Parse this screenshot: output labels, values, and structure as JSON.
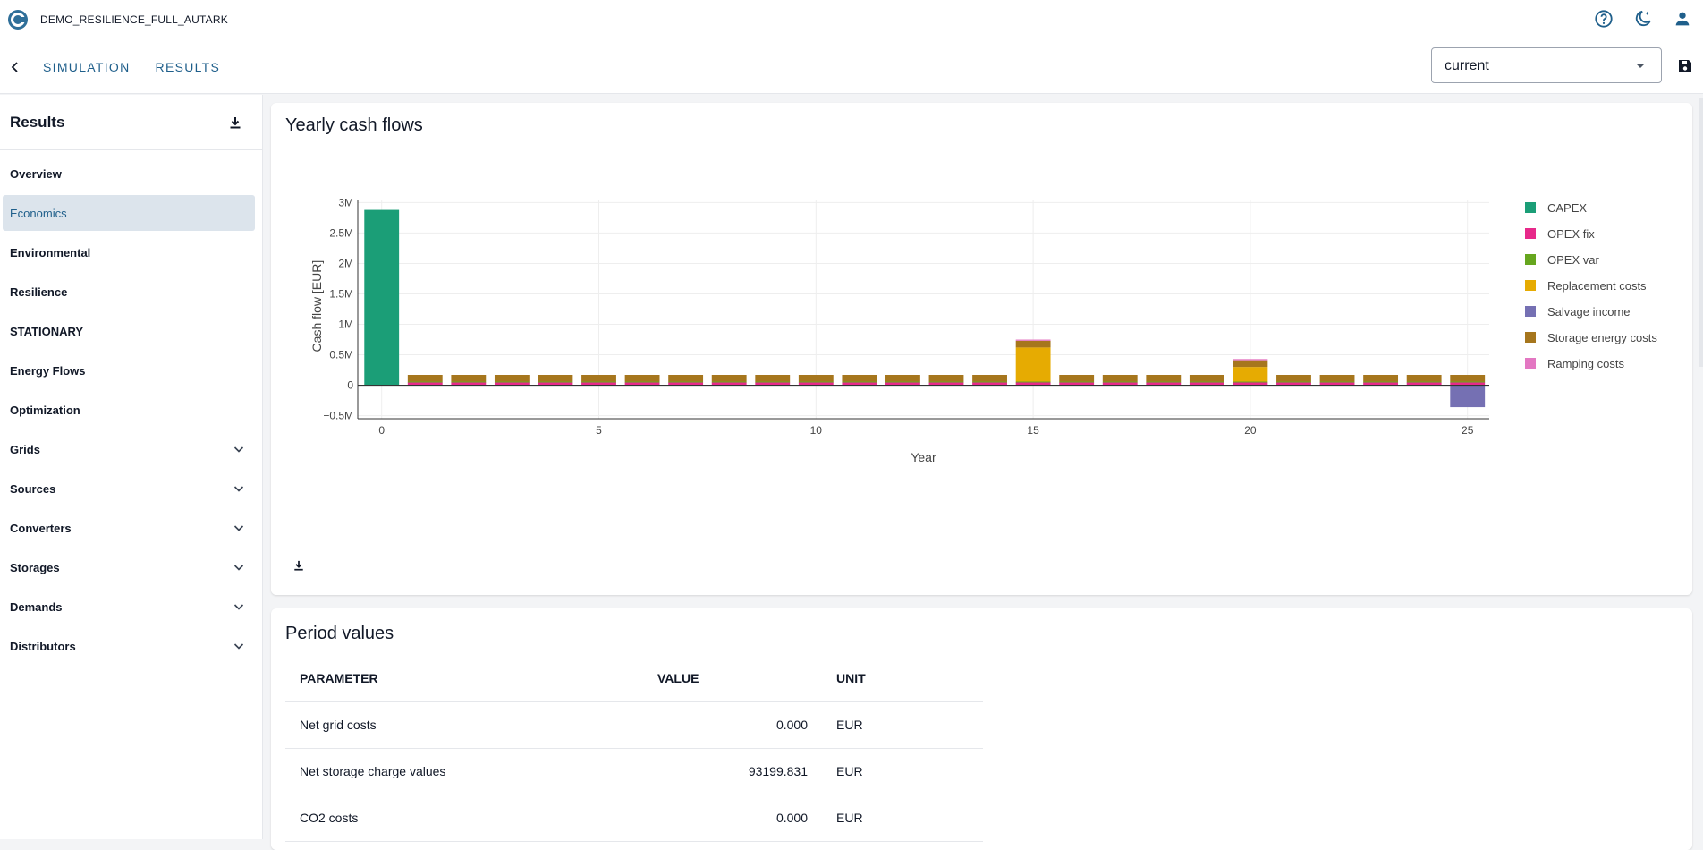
{
  "app": {
    "title": "DEMO_RESILIENCE_FULL_AUTARK"
  },
  "nav": {
    "tabs": [
      "SIMULATION",
      "RESULTS"
    ]
  },
  "scenario_select": {
    "value": "current"
  },
  "sidebar": {
    "title": "Results",
    "items": [
      {
        "label": "Overview",
        "expandable": false
      },
      {
        "label": "Economics",
        "expandable": false,
        "active": true
      },
      {
        "label": "Environmental",
        "expandable": false
      },
      {
        "label": "Resilience",
        "expandable": false
      },
      {
        "label": "STATIONARY",
        "expandable": false
      },
      {
        "label": "Energy Flows",
        "expandable": false
      },
      {
        "label": "Optimization",
        "expandable": false
      },
      {
        "label": "Grids",
        "expandable": true
      },
      {
        "label": "Sources",
        "expandable": true
      },
      {
        "label": "Converters",
        "expandable": true
      },
      {
        "label": "Storages",
        "expandable": true
      },
      {
        "label": "Demands",
        "expandable": true
      },
      {
        "label": "Distributors",
        "expandable": true
      }
    ]
  },
  "cashflow_panel": {
    "title": "Yearly cash flows"
  },
  "chart_data": {
    "type": "bar",
    "stacked": true,
    "title": "",
    "xlabel": "Year",
    "ylabel": "Cash flow  [EUR]",
    "x": [
      0,
      1,
      2,
      3,
      4,
      5,
      6,
      7,
      8,
      9,
      10,
      11,
      12,
      13,
      14,
      15,
      16,
      17,
      18,
      19,
      20,
      21,
      22,
      23,
      24,
      25
    ],
    "xticks": [
      "0",
      "5",
      "10",
      "15",
      "20",
      "25"
    ],
    "yticks": [
      "3M",
      "2.5M",
      "2M",
      "1.5M",
      "1M",
      "0.5M",
      "0",
      "−0.5M"
    ],
    "ylim": [
      -0.55,
      3.05
    ],
    "unit": "M EUR",
    "grid": true,
    "legend_position": "right",
    "series": [
      {
        "name": "CAPEX",
        "color": "#1b9e77",
        "values": [
          2.88,
          0,
          0,
          0,
          0,
          0,
          0,
          0,
          0,
          0,
          0,
          0,
          0,
          0,
          0,
          0,
          0,
          0,
          0,
          0,
          0,
          0,
          0,
          0,
          0,
          0
        ]
      },
      {
        "name": "OPEX fix",
        "color": "#e7298a",
        "values": [
          0,
          0.05,
          0.05,
          0.05,
          0.05,
          0.05,
          0.05,
          0.05,
          0.05,
          0.05,
          0.05,
          0.05,
          0.05,
          0.05,
          0.05,
          0.05,
          0.05,
          0.05,
          0.05,
          0.05,
          0.05,
          0.05,
          0.05,
          0.05,
          0.05,
          0.05
        ]
      },
      {
        "name": "OPEX var",
        "color": "#66a61e",
        "values": [
          0,
          0.01,
          0.01,
          0.01,
          0.01,
          0.01,
          0.01,
          0.01,
          0.01,
          0.01,
          0.01,
          0.01,
          0.01,
          0.01,
          0.01,
          0.01,
          0.01,
          0.01,
          0.01,
          0.01,
          0.01,
          0.01,
          0.01,
          0.01,
          0.01,
          0.01
        ]
      },
      {
        "name": "Replacement costs",
        "color": "#e6ab02",
        "values": [
          0,
          0,
          0,
          0,
          0,
          0,
          0,
          0,
          0,
          0,
          0,
          0,
          0,
          0,
          0,
          0.56,
          0,
          0,
          0,
          0,
          0.24,
          0,
          0,
          0,
          0,
          0
        ]
      },
      {
        "name": "Salvage income",
        "color": "#7570b3",
        "values": [
          0,
          0,
          0,
          0,
          0,
          0,
          0,
          0,
          0,
          0,
          0,
          0,
          0,
          0,
          0,
          0,
          0,
          0,
          0,
          0,
          0,
          0,
          0,
          0,
          0,
          -0.36
        ]
      },
      {
        "name": "Storage energy costs",
        "color": "#a6761d",
        "values": [
          0,
          0.11,
          0.11,
          0.11,
          0.11,
          0.11,
          0.11,
          0.11,
          0.11,
          0.11,
          0.11,
          0.11,
          0.11,
          0.11,
          0.11,
          0.11,
          0.11,
          0.11,
          0.11,
          0.11,
          0.11,
          0.11,
          0.11,
          0.11,
          0.11,
          0.11
        ]
      },
      {
        "name": "Ramping costs",
        "color": "#e377c2",
        "values": [
          0,
          0,
          0,
          0,
          0,
          0,
          0,
          0,
          0,
          0,
          0,
          0,
          0,
          0,
          0,
          0.02,
          0,
          0,
          0,
          0,
          0.02,
          0,
          0,
          0,
          0,
          0
        ]
      }
    ]
  },
  "period_panel": {
    "title": "Period values",
    "headers": [
      "PARAMETER",
      "VALUE",
      "UNIT"
    ],
    "rows": [
      {
        "parameter": "Net grid costs",
        "value": "0.000",
        "unit": "EUR"
      },
      {
        "parameter": "Net storage charge values",
        "value": "93199.831",
        "unit": "EUR"
      },
      {
        "parameter": "CO2 costs",
        "value": "0.000",
        "unit": "EUR"
      }
    ]
  }
}
